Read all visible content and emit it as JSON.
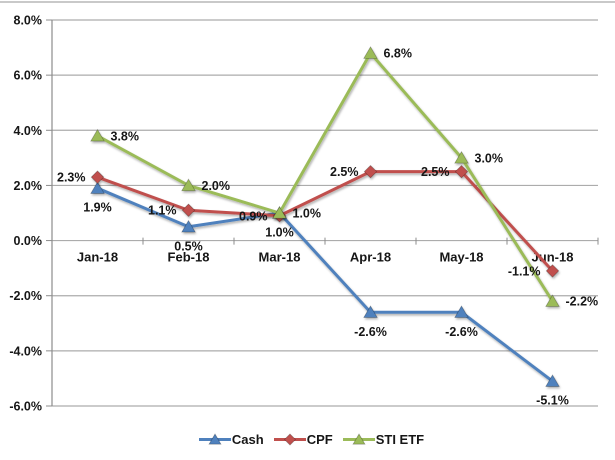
{
  "chart_data": {
    "type": "line",
    "categories": [
      "Jan-18",
      "Feb-18",
      "Mar-18",
      "Apr-18",
      "May-18",
      "Jun-18"
    ],
    "series": [
      {
        "name": "Cash",
        "color": "#4F81BD",
        "marker": "triangle",
        "values": [
          1.9,
          0.5,
          1.0,
          -2.6,
          -2.6,
          -5.1
        ],
        "point_labels": [
          "1.9%",
          "0.5%",
          "1.0%",
          "-2.6%",
          "-2.6%",
          "-5.1%"
        ],
        "label_positions": [
          "below",
          "below",
          "below",
          "below",
          "below",
          "below"
        ]
      },
      {
        "name": "CPF",
        "color": "#C0504D",
        "marker": "diamond",
        "values": [
          2.3,
          1.1,
          0.9,
          2.5,
          2.5,
          -1.1
        ],
        "point_labels": [
          "2.3%",
          "1.1%",
          "0.9%",
          "2.5%",
          "2.5%",
          "-1.1%"
        ],
        "label_positions": [
          "left",
          "left",
          "left",
          "left",
          "left",
          "left"
        ]
      },
      {
        "name": "STI ETF",
        "color": "#9BBB59",
        "marker": "triangle",
        "values": [
          3.8,
          2.0,
          1.0,
          6.8,
          3.0,
          -2.2
        ],
        "point_labels": [
          "3.8%",
          "2.0%",
          "1.0%",
          "6.8%",
          "3.0%",
          "-2.2%"
        ],
        "label_positions": [
          "right",
          "right",
          "right",
          "right",
          "right",
          "right"
        ]
      }
    ],
    "y_axis": {
      "min": -6.0,
      "max": 8.0,
      "step": 2.0,
      "tick_labels": [
        "8.0%",
        "6.0%",
        "4.0%",
        "2.0%",
        "0.0%",
        "-2.0%",
        "-4.0%",
        "-6.0%"
      ]
    },
    "title": "",
    "xlabel": "",
    "ylabel": "",
    "grid": true,
    "legend_position": "bottom",
    "grid_color": "#ACACAC",
    "axis_color": "#8C8C8C",
    "text_color": "#161616"
  }
}
